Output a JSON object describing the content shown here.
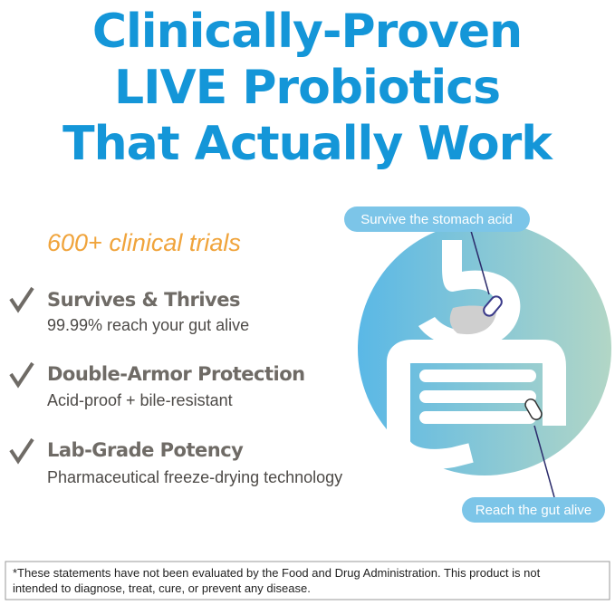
{
  "header": {
    "title_lines": [
      "Clinically-Proven",
      "LIVE Probiotics",
      "That Actually Work"
    ]
  },
  "highlight": "600+ clinical trials",
  "features": [
    {
      "title": "Survives & Thrives",
      "detail": "99.99% reach your gut alive"
    },
    {
      "title": "Double-Armor Protection",
      "detail": "Acid-proof + bile-resistant"
    },
    {
      "title": "Lab-Grade Potency",
      "detail": "Pharmaceutical freeze-drying technology"
    }
  ],
  "diagram": {
    "top_label": "Survive the stomach acid",
    "bottom_label": "Reach the gut alive"
  },
  "disclaimer_lines": [
    "*These statements have not been evaluated by the Food and Drug Administration. This product is not",
    "intended to diagnose, treat, cure, or prevent any disease."
  ]
}
